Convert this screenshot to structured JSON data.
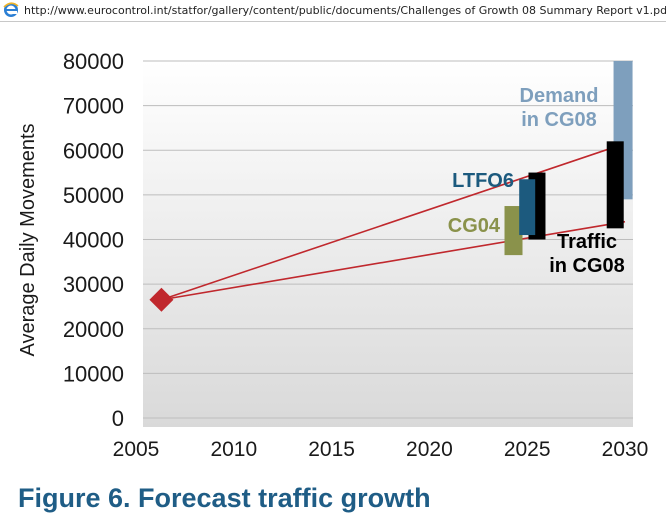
{
  "browser": {
    "url": "http://www.eurocontrol.int/statfor/gallery/content/public/documents/Challenges of Growth 08 Summary Report v1.pdf",
    "icon": "ie-icon"
  },
  "figure": {
    "caption": "Figure 6. Forecast traffic growth"
  },
  "colors": {
    "caption": "#1f5d86",
    "demand": "#7e9fbd",
    "ltfo6": "#1c5a7e",
    "cg04": "#8a924b",
    "traffic": "#000000",
    "trendline": "#c0282d",
    "marker": "#c0282d"
  },
  "chart_data": {
    "type": "bar",
    "ylabel": "Average Daily Movements",
    "xlabel": "",
    "xlim": [
      2005,
      2030
    ],
    "ylim": [
      0,
      80000
    ],
    "x_ticks": [
      "2005",
      "2010",
      "2015",
      "2020",
      "2025",
      "2030"
    ],
    "y_ticks": [
      "0",
      "10000",
      "20000",
      "30000",
      "40000",
      "50000",
      "60000",
      "70000",
      "80000"
    ],
    "grid": true,
    "base_point": {
      "x": 2006.3,
      "y": 26500
    },
    "trend_lines": [
      {
        "from": [
          2006.3,
          26500
        ],
        "to": [
          2030,
          61500
        ]
      },
      {
        "from": [
          2006.3,
          26500
        ],
        "to": [
          2030,
          44000
        ]
      }
    ],
    "ranges": [
      {
        "name": "CG04",
        "label": "CG04",
        "x": 2024.3,
        "low": 36500,
        "high": 47500
      },
      {
        "name": "LTFO6",
        "label": "LTFO6",
        "x": 2025.0,
        "low": 41000,
        "high": 53500
      },
      {
        "name": "Traffic in CG08",
        "label_line1": "Traffic",
        "label_line2": "in CG08",
        "x": 2025.5,
        "low": 40000,
        "high": 55000
      },
      {
        "name": "Traffic in CG08",
        "x": 2029.5,
        "low": 42500,
        "high": 62000
      },
      {
        "name": "Demand in CG08",
        "label_line1": "Demand",
        "label_line2": "in CG08",
        "x": 2029.9,
        "low": 49000,
        "high": 80000
      }
    ]
  }
}
